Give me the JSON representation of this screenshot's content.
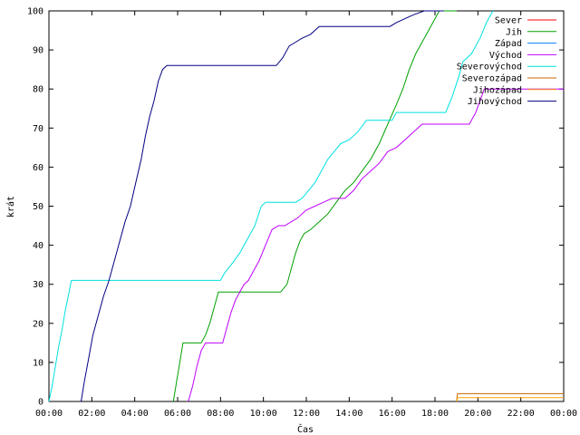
{
  "chart_data": {
    "type": "line",
    "title": "",
    "xlabel": "Čas",
    "ylabel": "krát",
    "xlim": [
      0,
      24
    ],
    "ylim": [
      0,
      100
    ],
    "x_ticks": [
      {
        "v": 0,
        "label": "00:00"
      },
      {
        "v": 2,
        "label": "02:00"
      },
      {
        "v": 4,
        "label": "04:00"
      },
      {
        "v": 6,
        "label": "06:00"
      },
      {
        "v": 8,
        "label": "08:00"
      },
      {
        "v": 10,
        "label": "10:00"
      },
      {
        "v": 12,
        "label": "12:00"
      },
      {
        "v": 14,
        "label": "14:00"
      },
      {
        "v": 16,
        "label": "16:00"
      },
      {
        "v": 18,
        "label": "18:00"
      },
      {
        "v": 20,
        "label": "20:00"
      },
      {
        "v": 22,
        "label": "22:00"
      },
      {
        "v": 24,
        "label": "00:00"
      }
    ],
    "y_ticks": [
      {
        "v": 0,
        "label": "0"
      },
      {
        "v": 10,
        "label": "10"
      },
      {
        "v": 20,
        "label": "20"
      },
      {
        "v": 30,
        "label": "30"
      },
      {
        "v": 40,
        "label": "40"
      },
      {
        "v": 50,
        "label": "50"
      },
      {
        "v": 60,
        "label": "60"
      },
      {
        "v": 70,
        "label": "70"
      },
      {
        "v": 80,
        "label": "80"
      },
      {
        "v": 90,
        "label": "90"
      },
      {
        "v": 100,
        "label": "100"
      }
    ],
    "grid": false,
    "legend_position": "top-right",
    "series": [
      {
        "name": "Sever",
        "color": "#ff0000",
        "points": []
      },
      {
        "name": "Jih",
        "color": "#00a000",
        "points": [
          [
            5.8,
            0
          ],
          [
            5.95,
            5
          ],
          [
            6.1,
            10
          ],
          [
            6.25,
            15
          ],
          [
            7.1,
            15
          ],
          [
            7.3,
            17
          ],
          [
            7.5,
            20
          ],
          [
            7.7,
            24
          ],
          [
            7.9,
            28
          ],
          [
            10.8,
            28
          ],
          [
            11.1,
            30
          ],
          [
            11.3,
            34
          ],
          [
            11.5,
            38
          ],
          [
            11.7,
            41
          ],
          [
            11.9,
            43
          ],
          [
            12.2,
            44
          ],
          [
            12.6,
            46
          ],
          [
            13.0,
            48
          ],
          [
            13.4,
            51
          ],
          [
            13.8,
            54
          ],
          [
            14.2,
            56
          ],
          [
            14.6,
            59
          ],
          [
            15.0,
            62
          ],
          [
            15.4,
            66
          ],
          [
            15.8,
            71
          ],
          [
            16.2,
            76
          ],
          [
            16.5,
            80
          ],
          [
            16.8,
            85
          ],
          [
            17.1,
            89
          ],
          [
            17.4,
            92
          ],
          [
            17.7,
            95
          ],
          [
            18.0,
            98
          ],
          [
            18.2,
            100
          ],
          [
            19.0,
            100
          ]
        ]
      },
      {
        "name": "Západ",
        "color": "#0080ff",
        "points": []
      },
      {
        "name": "Východ",
        "color": "#c000ff",
        "points": [
          [
            6.5,
            0
          ],
          [
            6.7,
            4
          ],
          [
            6.9,
            9
          ],
          [
            7.1,
            13
          ],
          [
            7.3,
            15
          ],
          [
            8.1,
            15
          ],
          [
            8.3,
            19
          ],
          [
            8.5,
            23
          ],
          [
            8.7,
            26
          ],
          [
            8.9,
            28
          ],
          [
            9.1,
            30
          ],
          [
            9.3,
            31
          ],
          [
            9.5,
            33
          ],
          [
            9.8,
            36
          ],
          [
            10.1,
            40
          ],
          [
            10.4,
            44
          ],
          [
            10.7,
            45
          ],
          [
            11.0,
            45
          ],
          [
            11.3,
            46
          ],
          [
            11.6,
            47
          ],
          [
            12.0,
            49
          ],
          [
            12.4,
            50
          ],
          [
            12.8,
            51
          ],
          [
            13.2,
            52
          ],
          [
            13.8,
            52
          ],
          [
            14.2,
            54
          ],
          [
            14.6,
            57
          ],
          [
            15.0,
            59
          ],
          [
            15.4,
            61
          ],
          [
            15.8,
            64
          ],
          [
            16.2,
            65
          ],
          [
            16.6,
            67
          ],
          [
            17.0,
            69
          ],
          [
            17.4,
            71
          ],
          [
            19.6,
            71
          ],
          [
            19.9,
            74
          ],
          [
            20.1,
            77
          ],
          [
            20.3,
            80
          ],
          [
            24.0,
            80
          ]
        ]
      },
      {
        "name": "Severovýchod",
        "color": "#00e0e0",
        "points": [
          [
            0.0,
            0
          ],
          [
            0.15,
            4
          ],
          [
            0.3,
            9
          ],
          [
            0.45,
            14
          ],
          [
            0.6,
            18
          ],
          [
            0.75,
            23
          ],
          [
            0.9,
            27
          ],
          [
            1.05,
            31
          ],
          [
            8.0,
            31
          ],
          [
            8.2,
            33
          ],
          [
            8.5,
            35
          ],
          [
            8.9,
            38
          ],
          [
            9.2,
            41
          ],
          [
            9.6,
            45
          ],
          [
            9.9,
            50
          ],
          [
            10.1,
            51
          ],
          [
            11.5,
            51
          ],
          [
            11.8,
            52
          ],
          [
            12.1,
            54
          ],
          [
            12.4,
            56
          ],
          [
            12.7,
            59
          ],
          [
            13.0,
            62
          ],
          [
            13.3,
            64
          ],
          [
            13.6,
            66
          ],
          [
            14.0,
            67
          ],
          [
            14.4,
            69
          ],
          [
            14.8,
            72
          ],
          [
            16.0,
            72
          ],
          [
            16.2,
            74
          ],
          [
            18.5,
            74
          ],
          [
            18.8,
            78
          ],
          [
            19.1,
            83
          ],
          [
            19.3,
            87
          ],
          [
            19.7,
            89
          ],
          [
            20.1,
            93
          ],
          [
            20.4,
            97
          ],
          [
            20.7,
            100
          ]
        ]
      },
      {
        "name": "Severozápad",
        "color": "#c86400",
        "points": [
          [
            19.0,
            0
          ],
          [
            19.05,
            2
          ],
          [
            24.0,
            2
          ]
        ]
      },
      {
        "name": "Jihozápad",
        "color": "#ffa000",
        "points": [
          [
            19.0,
            0
          ],
          [
            19.05,
            1
          ],
          [
            24.0,
            1
          ]
        ]
      },
      {
        "name": "Jihovýchod",
        "color": "#000080",
        "points": [
          [
            1.5,
            0
          ],
          [
            1.65,
            5
          ],
          [
            1.85,
            11
          ],
          [
            2.05,
            17
          ],
          [
            2.3,
            22
          ],
          [
            2.55,
            27
          ],
          [
            2.8,
            31
          ],
          [
            3.05,
            36
          ],
          [
            3.3,
            41
          ],
          [
            3.55,
            46
          ],
          [
            3.8,
            50
          ],
          [
            4.05,
            56
          ],
          [
            4.3,
            62
          ],
          [
            4.5,
            68
          ],
          [
            4.7,
            73
          ],
          [
            4.9,
            77
          ],
          [
            5.1,
            82
          ],
          [
            5.3,
            85
          ],
          [
            5.5,
            86
          ],
          [
            10.6,
            86
          ],
          [
            10.9,
            88
          ],
          [
            11.2,
            91
          ],
          [
            11.5,
            92
          ],
          [
            11.8,
            93
          ],
          [
            12.2,
            94
          ],
          [
            12.6,
            96
          ],
          [
            15.9,
            96
          ],
          [
            16.2,
            97
          ],
          [
            16.6,
            98
          ],
          [
            17.0,
            99
          ],
          [
            17.5,
            100
          ],
          [
            18.4,
            100
          ]
        ]
      }
    ]
  }
}
